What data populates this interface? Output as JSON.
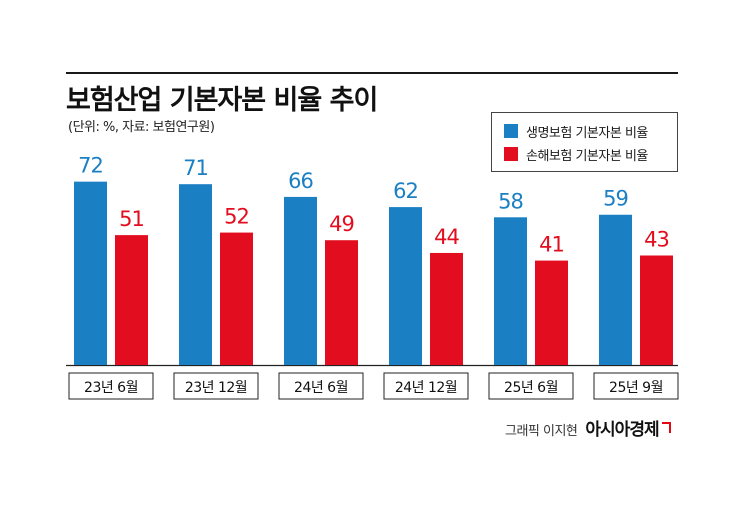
{
  "title": "보험산업 기본자본 비율 추이",
  "subtitle": "(단위: %, 자료: 보험연구원)",
  "credit": {
    "text": "그래픽 이지현",
    "brand": "아시아경제"
  },
  "colors": {
    "life": "#1b7fc4",
    "nonlife": "#e20e1f"
  },
  "chart_data": {
    "type": "bar",
    "categories": [
      "23년 6월",
      "23년 12월",
      "24년 6월",
      "24년 12월",
      "25년 6월",
      "25년 9월"
    ],
    "series": [
      {
        "name": "생명보험 기본자본 비율",
        "values": [
          72,
          71,
          66,
          62,
          58,
          59
        ]
      },
      {
        "name": "손해보험 기본자본 비율",
        "values": [
          51,
          52,
          49,
          44,
          41,
          43
        ]
      }
    ],
    "ylim": [
      0,
      75
    ],
    "legend_position": "top-right",
    "grid": false,
    "data_labels": true
  }
}
